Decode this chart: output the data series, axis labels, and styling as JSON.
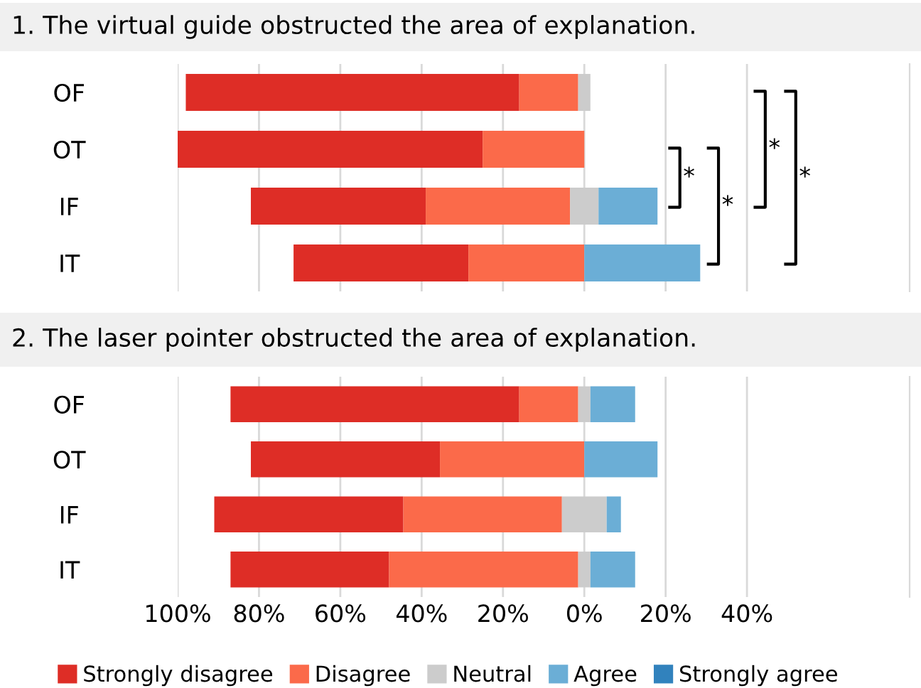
{
  "chart_data": [
    {
      "type": "bar",
      "orientation": "horizontal",
      "title": "1. The virtual guide obstructed the area of explanation.",
      "categories": [
        "OF",
        "OT",
        "IF",
        "IT"
      ],
      "series": [
        {
          "color": "#de2d26",
          "base": [
            -98,
            -100,
            -82,
            -71.5
          ],
          "values": [
            82,
            75,
            43,
            43
          ]
        },
        {
          "color": "#fb6a4a",
          "base": [
            -16,
            -25,
            -39,
            -28.5
          ],
          "values": [
            14.5,
            25,
            35.5,
            28.5
          ]
        },
        {
          "color": "#cccccc",
          "base": [
            -1.5,
            null,
            -3.5,
            null
          ],
          "values": [
            3,
            null,
            7,
            null
          ]
        },
        {
          "color": "#6baed6",
          "base": [
            null,
            null,
            3.5,
            0
          ],
          "values": [
            null,
            null,
            14.5,
            28.5
          ]
        }
      ],
      "xlim": [
        -100,
        80
      ],
      "xticks": [
        -100,
        -80,
        -60,
        -40,
        -20,
        0,
        20,
        40
      ],
      "grid": "x",
      "tick_labels": "y",
      "annotations": [
        "*",
        "*",
        "*",
        "*"
      ]
    },
    {
      "type": "bar",
      "orientation": "horizontal",
      "title": "2. The laser pointer obstructed the area of explanation.",
      "categories": [
        "OF",
        "OT",
        "IF",
        "IT"
      ],
      "series": [
        {
          "name": "Strongly disagree",
          "color": "#de2d26",
          "base": [
            -87,
            -82,
            -91,
            -87
          ],
          "values": [
            71,
            46.5,
            46.5,
            39
          ]
        },
        {
          "name": "Disagree",
          "color": "#fb6a4a",
          "base": [
            -16,
            -35.5,
            -44.5,
            -48
          ],
          "values": [
            14.5,
            35.5,
            39,
            46.5
          ]
        },
        {
          "name": "Neutral",
          "color": "#cccccc",
          "base": [
            -1.5,
            null,
            -5.5,
            -1.5
          ],
          "values": [
            3,
            null,
            11,
            3
          ]
        },
        {
          "name": "Agree",
          "color": "#6baed6",
          "base": [
            1.5,
            0,
            5.5,
            1.5
          ],
          "values": [
            11,
            18,
            3.5,
            11
          ]
        },
        {
          "name": "Strongly agree",
          "color": "#3182bd",
          "base": [
            null,
            null,
            null,
            null
          ],
          "values": [
            null,
            null,
            null,
            null
          ]
        }
      ],
      "xlim": [
        -100,
        80
      ],
      "xticks": [
        {
          "value": -100,
          "label": "100%"
        },
        {
          "value": -80,
          "label": "80%"
        },
        {
          "value": -60,
          "label": "60%"
        },
        {
          "value": -40,
          "label": "40%"
        },
        {
          "value": -20,
          "label": "20%"
        },
        {
          "value": 0,
          "label": "0%"
        },
        {
          "value": 20,
          "label": "20%"
        },
        {
          "value": 40,
          "label": "40%"
        }
      ],
      "grid": "x",
      "legend": "bottom"
    }
  ]
}
